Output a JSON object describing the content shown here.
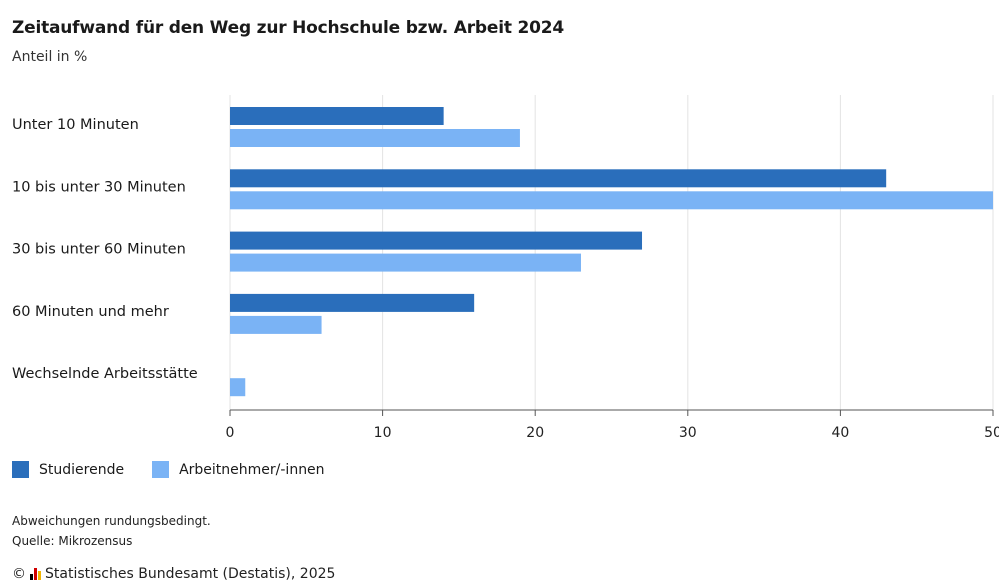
{
  "chart_data": {
    "type": "bar",
    "orientation": "horizontal",
    "title": "Zeitaufwand für den Weg zur Hochschule bzw. Arbeit 2024",
    "subtitle": "Anteil in %",
    "categories": [
      "Unter 10 Minuten",
      "10 bis unter 30 Minuten",
      "30 bis unter 60 Minuten",
      "60 Minuten und mehr",
      "Wechselnde Arbeitsstätte"
    ],
    "series": [
      {
        "name": "Studierende",
        "color": "#2a6ebb",
        "values": [
          14,
          43,
          27,
          16,
          null
        ]
      },
      {
        "name": "Arbeitnehmer/-innen",
        "color": "#7ab3f5",
        "values": [
          19,
          50,
          23,
          6,
          1
        ]
      }
    ],
    "xlim": [
      0,
      50
    ],
    "xticks": [
      "0",
      "10",
      "20",
      "30",
      "40",
      "50"
    ],
    "grid": true,
    "legend_position": "bottom-left"
  },
  "notes": {
    "rounding": "Abweichungen rundungsbedingt.",
    "source": "Quelle: Mikrozensus"
  },
  "footer": {
    "copyright": "©",
    "publisher": "Statistisches Bundesamt (Destatis), 2025",
    "logo_colors": [
      "#000000",
      "#d00000",
      "#f2b600"
    ]
  }
}
